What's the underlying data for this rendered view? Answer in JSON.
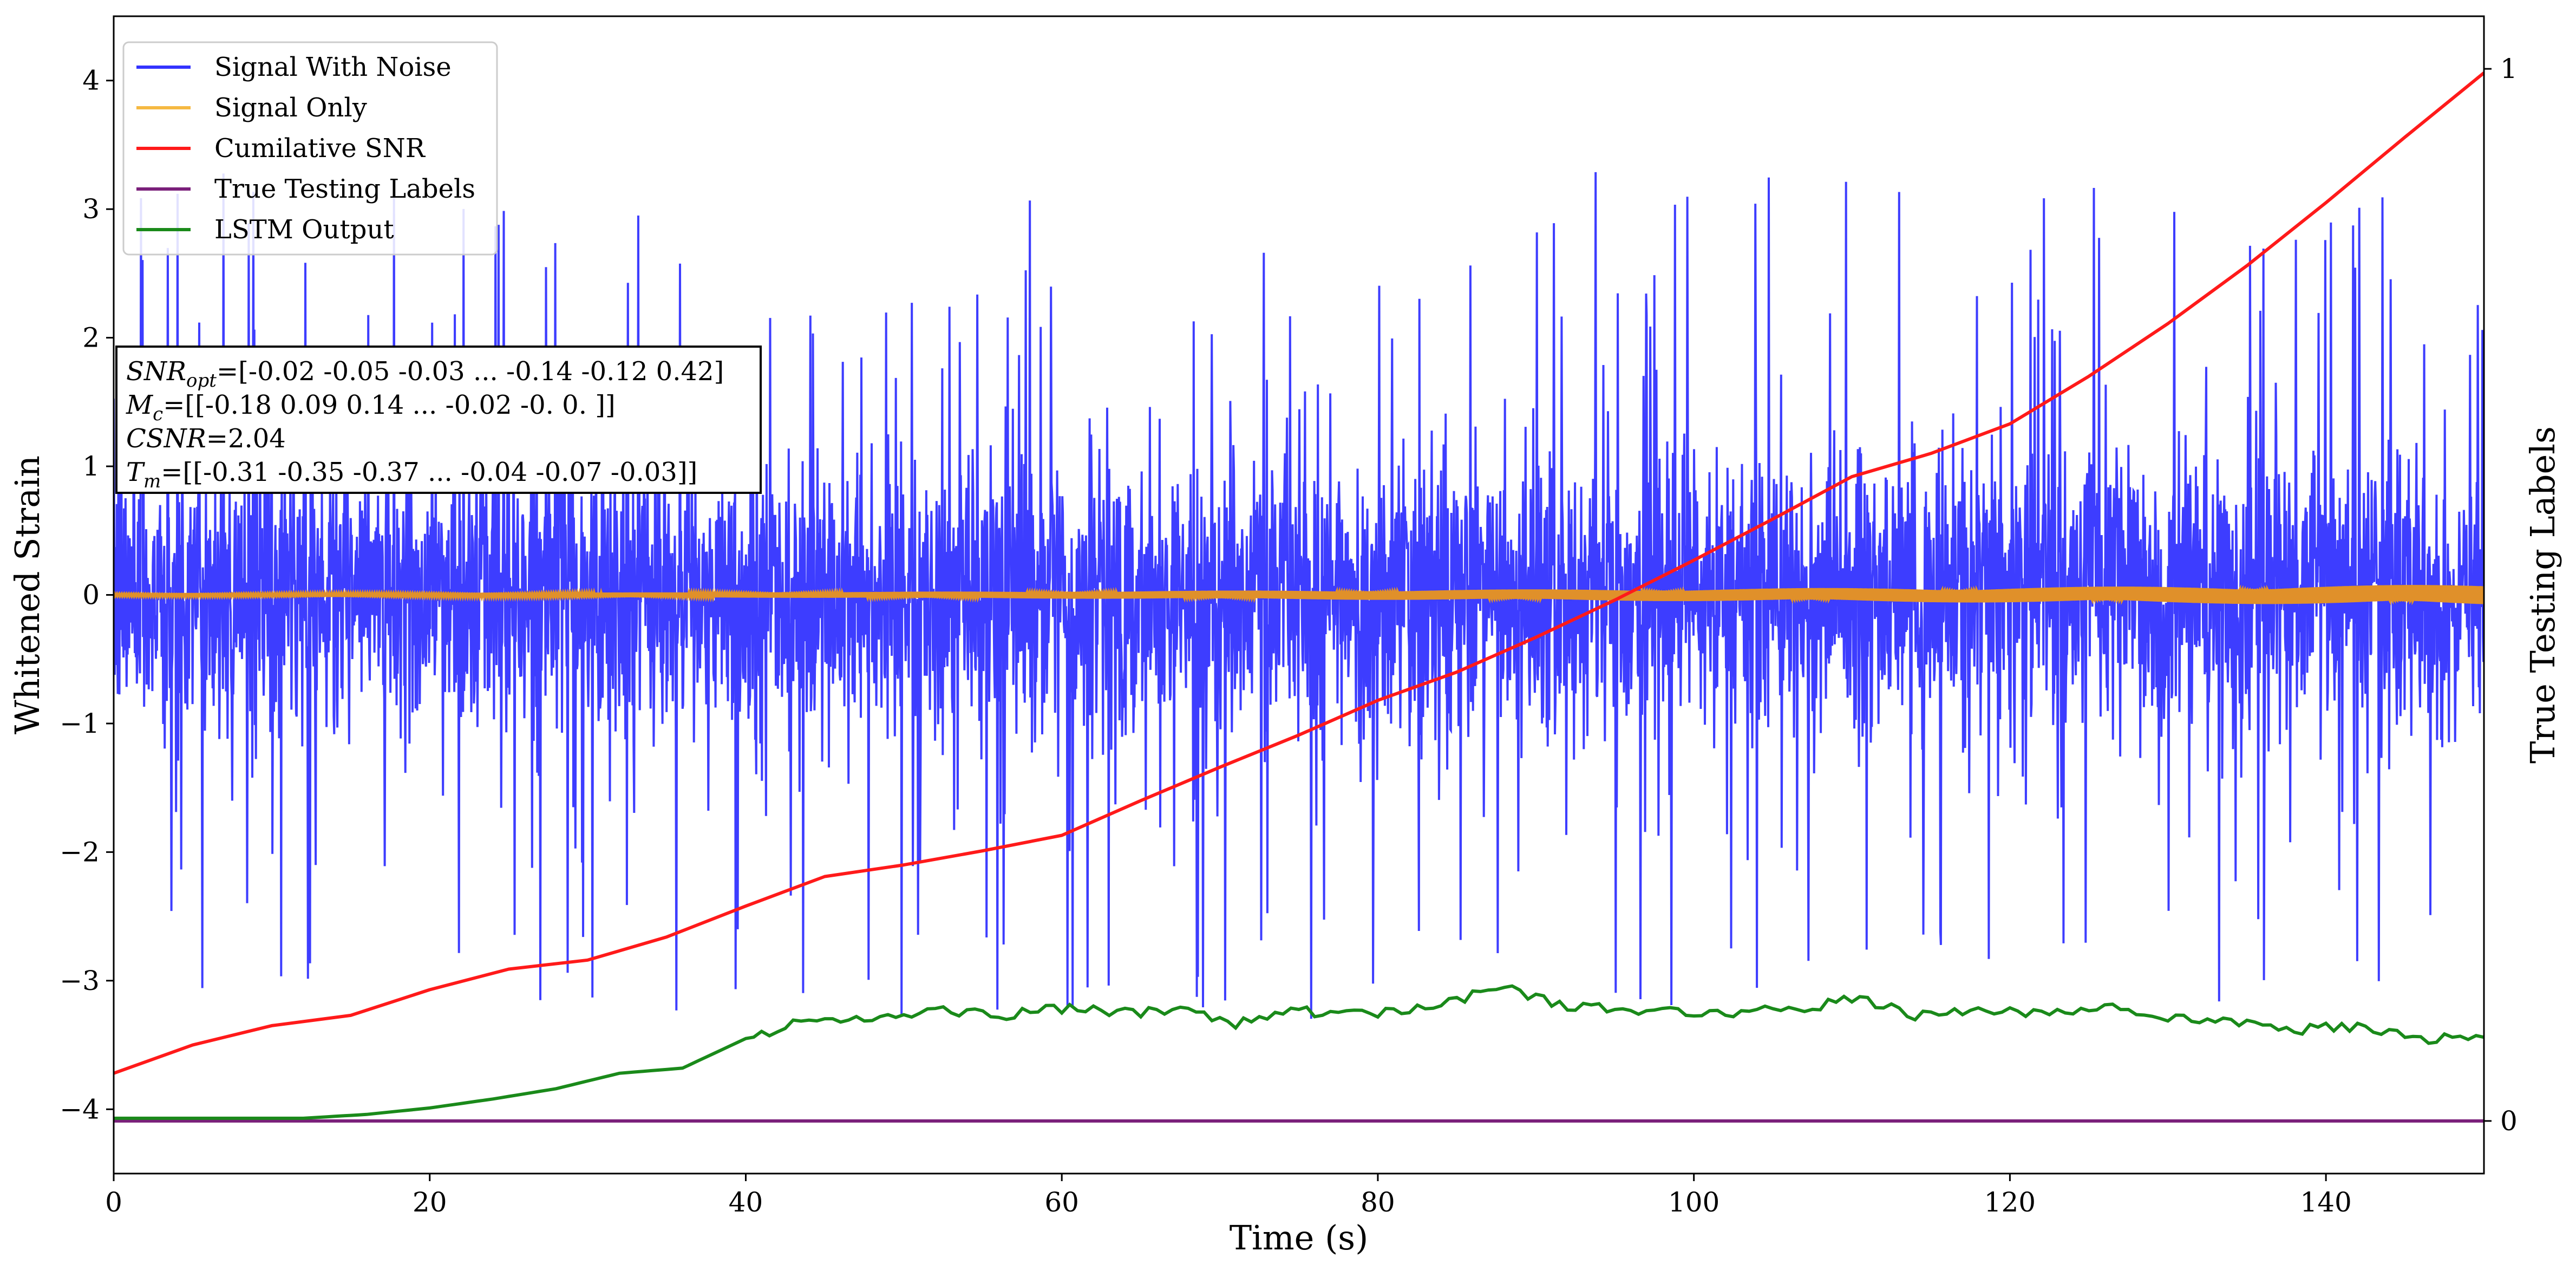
{
  "chart_data": {
    "type": "line",
    "xlabel": "Time (s)",
    "ylabel": "Whitened Strain",
    "y2label": "True Testing Labels",
    "xlim": [
      0,
      150
    ],
    "ylim": [
      -4.5,
      4.5
    ],
    "y2lim": [
      -0.05,
      1.05
    ],
    "xticks": [
      0,
      20,
      40,
      60,
      80,
      100,
      120,
      140
    ],
    "yticks": [
      -4,
      -3,
      -2,
      -1,
      0,
      1,
      2,
      3,
      4
    ],
    "y2ticks": [
      0,
      1
    ],
    "grid": false,
    "legend_position": "upper-left",
    "colors": {
      "signal_with_noise": "#3333ff",
      "signal_only": "#f5b942",
      "cumulative_snr": "#ff1a1a",
      "true_labels": "#7a1f7a",
      "lstm_output": "#1a8a1a"
    },
    "series": [
      {
        "name": "Signal With Noise",
        "axis": "left",
        "envelope_upper": 4.2,
        "envelope_lower": -3.8,
        "typical_range": [
          -1.3,
          1.3
        ]
      },
      {
        "name": "Signal Only",
        "axis": "left",
        "amplitude_start": 0.01,
        "amplitude_end": 0.08
      },
      {
        "name": "Cumilative SNR",
        "axis": "left",
        "x": [
          0,
          5,
          10,
          15,
          20,
          25,
          30,
          35,
          40,
          45,
          50,
          55,
          60,
          65,
          70,
          75,
          80,
          85,
          90,
          95,
          100,
          105,
          110,
          115,
          120,
          125,
          130,
          135,
          140,
          145,
          150
        ],
        "y": [
          -3.72,
          -3.5,
          -3.35,
          -3.27,
          -3.07,
          -2.91,
          -2.84,
          -2.66,
          -2.42,
          -2.19,
          -2.1,
          -1.99,
          -1.87,
          -1.6,
          -1.34,
          -1.09,
          -0.82,
          -0.6,
          -0.33,
          -0.04,
          0.27,
          0.59,
          0.92,
          1.1,
          1.33,
          1.7,
          2.11,
          2.56,
          3.05,
          3.56,
          4.06
        ]
      },
      {
        "name": "True Testing Labels",
        "axis": "right",
        "x": [
          0,
          150
        ],
        "y": [
          0,
          0
        ]
      },
      {
        "name": "LSTM Output",
        "axis": "left",
        "x": [
          0,
          12,
          16,
          20,
          24,
          28,
          32,
          36,
          40,
          42,
          44,
          48,
          52,
          56,
          60,
          64,
          68,
          71,
          74,
          78,
          82,
          86,
          88,
          92,
          96,
          100,
          104,
          108,
          110,
          114,
          118,
          122,
          126,
          130,
          134,
          138,
          142,
          146,
          150
        ],
        "y": [
          -4.07,
          -4.07,
          -4.04,
          -3.99,
          -3.92,
          -3.84,
          -3.72,
          -3.68,
          -3.45,
          -3.37,
          -3.27,
          -3.32,
          -3.22,
          -3.27,
          -3.22,
          -3.25,
          -3.22,
          -3.33,
          -3.23,
          -3.27,
          -3.22,
          -3.12,
          -3.05,
          -3.2,
          -3.23,
          -3.25,
          -3.24,
          -3.2,
          -3.13,
          -3.27,
          -3.22,
          -3.27,
          -3.19,
          -3.28,
          -3.33,
          -3.38,
          -3.36,
          -3.45,
          -3.44
        ]
      }
    ],
    "legend": [
      {
        "label": "Signal With Noise",
        "color": "#3333ff"
      },
      {
        "label": "Signal Only",
        "color": "#f5b942"
      },
      {
        "label": "Cumilative SNR",
        "color": "#ff1a1a"
      },
      {
        "label": "True Testing Labels",
        "color": "#7a1f7a"
      },
      {
        "label": "LSTM Output",
        "color": "#1a8a1a"
      }
    ],
    "annotation": {
      "lines": [
        {
          "sym": "SNR",
          "sub": "opt",
          "rest": "=[-0.02 -0.05 -0.03 ... -0.14 -0.12  0.42]"
        },
        {
          "sym": "M",
          "sub": "c",
          "rest": "=[[-0.18  0.09  0.14 ... -0.02 -0.     0.  ]]"
        },
        {
          "sym": "CSNR",
          "sub": "",
          "rest": "=2.04"
        },
        {
          "sym": "T",
          "sub": "m",
          "rest": "=[[-0.31 -0.35 -0.37 ... -0.04 -0.07 -0.03]]"
        }
      ]
    }
  }
}
